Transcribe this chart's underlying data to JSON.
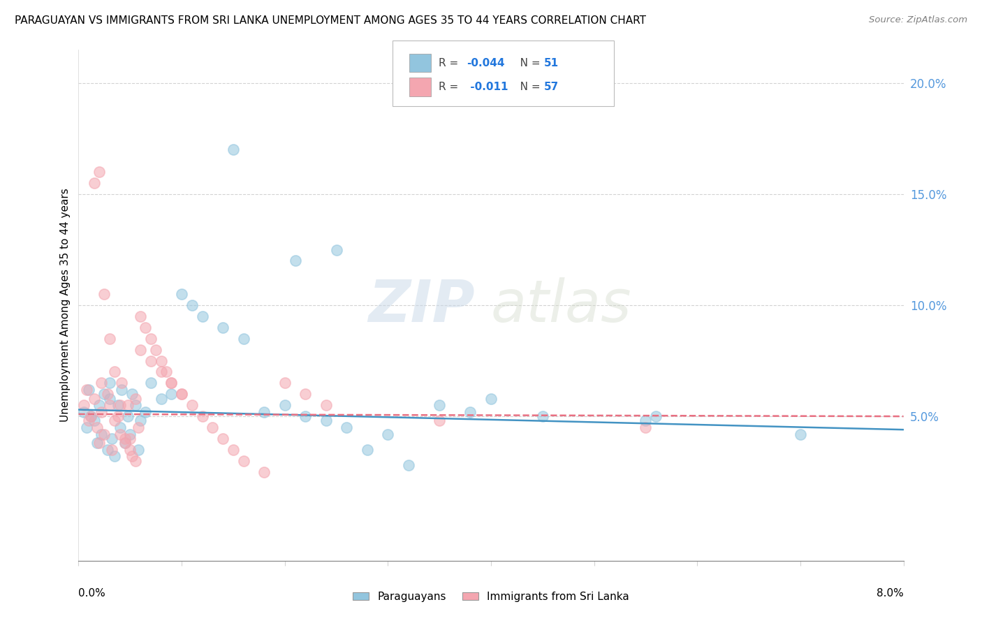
{
  "title": "PARAGUAYAN VS IMMIGRANTS FROM SRI LANKA UNEMPLOYMENT AMONG AGES 35 TO 44 YEARS CORRELATION CHART",
  "source": "Source: ZipAtlas.com",
  "ylabel": "Unemployment Among Ages 35 to 44 years",
  "xlim": [
    0.0,
    8.0
  ],
  "ylim": [
    -1.5,
    21.5
  ],
  "y_data_min": 0.0,
  "y_data_max": 20.0,
  "right_yticks": [
    5.0,
    10.0,
    15.0,
    20.0
  ],
  "blue_R": "-0.044",
  "blue_N": "51",
  "pink_R": "-0.011",
  "pink_N": "57",
  "blue_color": "#92c5de",
  "pink_color": "#f4a6b0",
  "blue_line_color": "#4393c3",
  "pink_line_color": "#e87082",
  "blue_label": "Paraguayans",
  "pink_label": "Immigrants from Sri Lanka",
  "watermark_zip": "ZIP",
  "watermark_atlas": "atlas",
  "blue_scatter_x": [
    0.05,
    0.08,
    0.1,
    0.12,
    0.15,
    0.18,
    0.2,
    0.22,
    0.25,
    0.28,
    0.3,
    0.32,
    0.35,
    0.38,
    0.4,
    0.42,
    0.45,
    0.48,
    0.5,
    0.52,
    0.55,
    0.58,
    0.6,
    0.65,
    0.7,
    0.8,
    0.9,
    1.0,
    1.1,
    1.2,
    1.4,
    1.6,
    1.8,
    2.0,
    2.2,
    2.4,
    2.6,
    2.8,
    3.0,
    3.2,
    3.5,
    3.8,
    4.0,
    4.5,
    5.5,
    5.6,
    7.0,
    1.5,
    2.5,
    2.1,
    0.3
  ],
  "blue_scatter_y": [
    5.2,
    4.5,
    6.2,
    5.0,
    4.8,
    3.8,
    5.5,
    4.2,
    6.0,
    3.5,
    5.8,
    4.0,
    3.2,
    5.5,
    4.5,
    6.2,
    3.8,
    5.0,
    4.2,
    6.0,
    5.5,
    3.5,
    4.8,
    5.2,
    6.5,
    5.8,
    6.0,
    10.5,
    10.0,
    9.5,
    9.0,
    8.5,
    5.2,
    5.5,
    5.0,
    4.8,
    4.5,
    3.5,
    4.2,
    2.8,
    5.5,
    5.2,
    5.8,
    5.0,
    4.8,
    5.0,
    4.2,
    17.0,
    12.5,
    12.0,
    6.5
  ],
  "pink_scatter_x": [
    0.05,
    0.08,
    0.1,
    0.12,
    0.15,
    0.18,
    0.2,
    0.22,
    0.25,
    0.28,
    0.3,
    0.32,
    0.35,
    0.38,
    0.4,
    0.42,
    0.45,
    0.48,
    0.5,
    0.52,
    0.55,
    0.58,
    0.6,
    0.65,
    0.7,
    0.75,
    0.8,
    0.85,
    0.9,
    1.0,
    1.1,
    1.2,
    1.3,
    1.4,
    1.5,
    1.6,
    1.8,
    2.0,
    2.2,
    2.4,
    0.6,
    0.7,
    0.8,
    0.9,
    1.0,
    3.5,
    5.5,
    0.2,
    0.25,
    0.3,
    0.35,
    0.4,
    0.45,
    0.5,
    0.55,
    0.15,
    0.22
  ],
  "pink_scatter_y": [
    5.5,
    6.2,
    4.8,
    5.0,
    5.8,
    4.5,
    3.8,
    5.2,
    4.2,
    6.0,
    5.5,
    3.5,
    4.8,
    5.0,
    4.2,
    6.5,
    3.8,
    5.5,
    4.0,
    3.2,
    5.8,
    4.5,
    9.5,
    9.0,
    8.5,
    8.0,
    7.5,
    7.0,
    6.5,
    6.0,
    5.5,
    5.0,
    4.5,
    4.0,
    3.5,
    3.0,
    2.5,
    6.5,
    6.0,
    5.5,
    8.0,
    7.5,
    7.0,
    6.5,
    6.0,
    4.8,
    4.5,
    16.0,
    10.5,
    8.5,
    7.0,
    5.5,
    4.0,
    3.5,
    3.0,
    15.5,
    6.5
  ],
  "blue_trend_x": [
    0,
    8
  ],
  "blue_trend_y": [
    5.3,
    4.4
  ],
  "pink_trend_x": [
    0,
    8
  ],
  "pink_trend_y": [
    5.1,
    5.0
  ]
}
